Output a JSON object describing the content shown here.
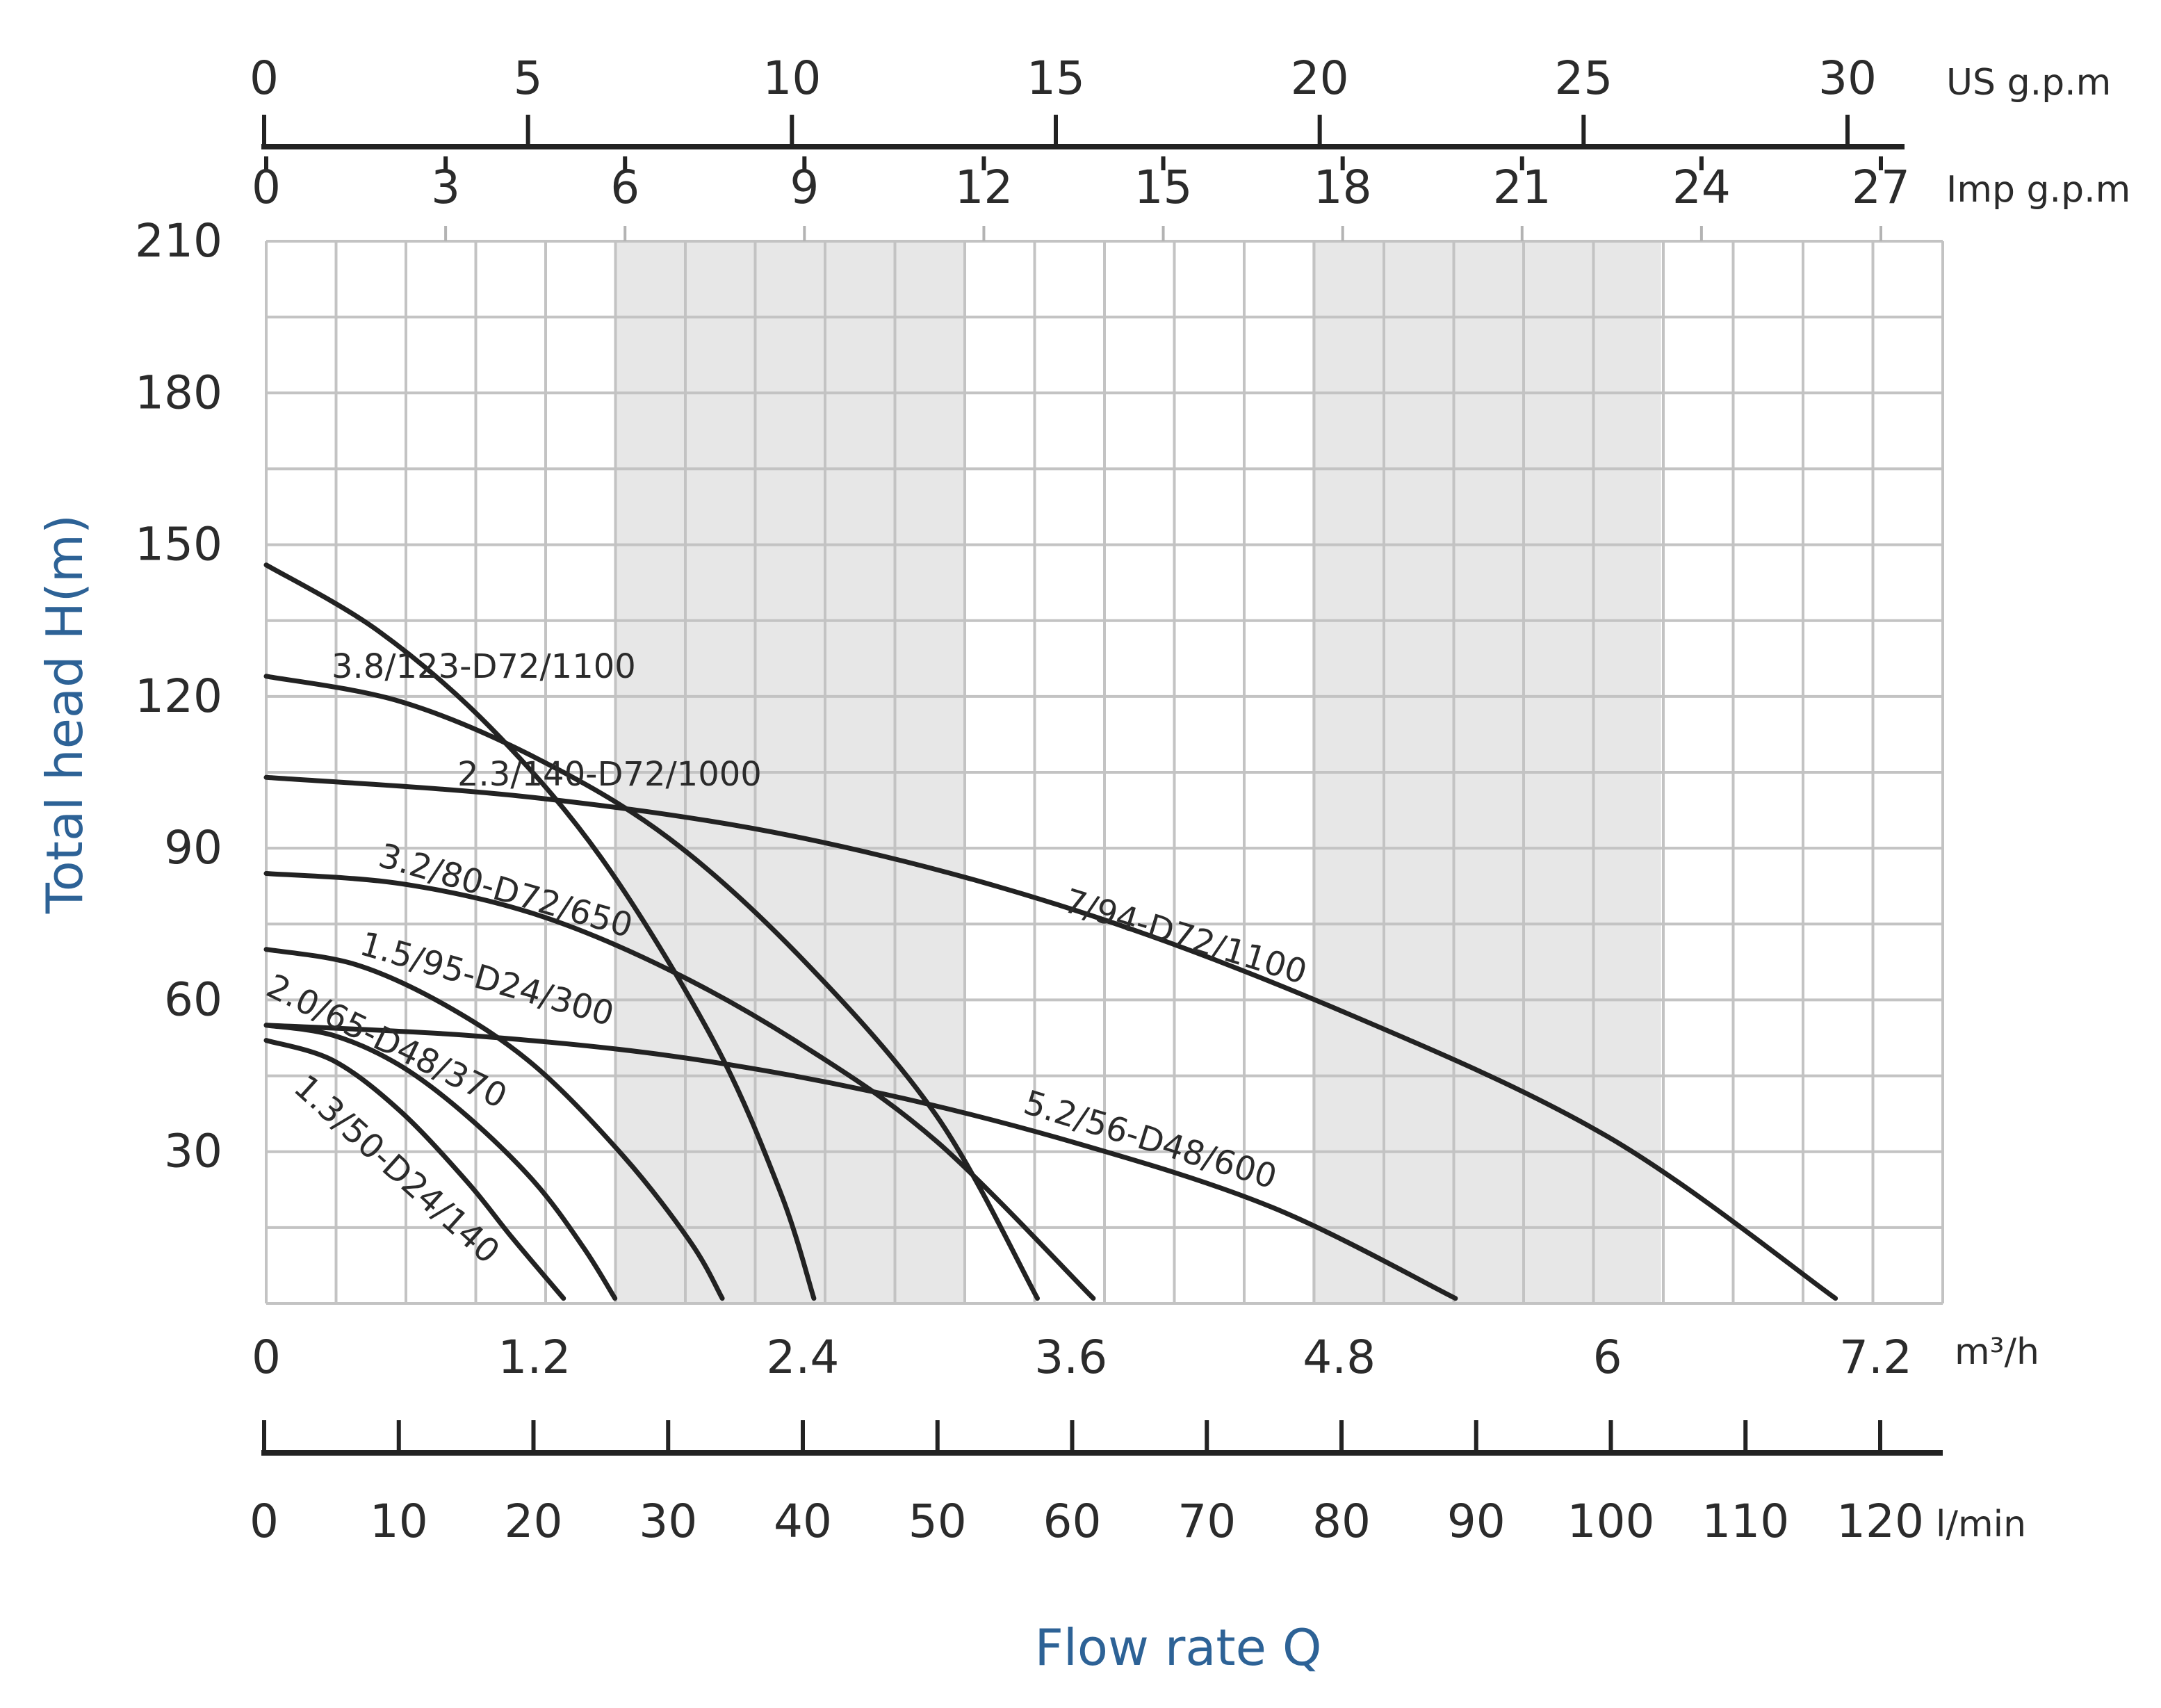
{
  "chart_data": {
    "type": "line",
    "xlabel": "Flow rate Q",
    "ylabel": "Total head H(m)",
    "x_unit": "m³/h",
    "xlim": [
      0,
      7.5
    ],
    "ylim": [
      0,
      210
    ],
    "x_ticks": [
      0,
      1.2,
      2.4,
      3.6,
      4.8,
      6,
      7.2
    ],
    "x_tick_labels": [
      "0",
      "1.2",
      "2.4",
      "3.6",
      "4.8",
      "6",
      "7.2"
    ],
    "y_ticks": [
      30,
      60,
      90,
      120,
      150,
      180,
      210
    ],
    "y_tick_labels": [
      "30",
      "60",
      "90",
      "120",
      "150",
      "180",
      "210"
    ],
    "grid": true,
    "shaded_x_ranges": [
      [
        1.56,
        3.12
      ],
      [
        4.68,
        6.24
      ]
    ],
    "secondary_axes": [
      {
        "unit": "US g.p.m",
        "position": "top",
        "ticks": [
          0,
          5,
          10,
          15,
          20,
          25,
          30
        ],
        "labels": [
          "0",
          "5",
          "10",
          "15",
          "20",
          "25",
          "30"
        ]
      },
      {
        "unit": "Imp g.p.m",
        "position": "top",
        "ticks": [
          0,
          3,
          6,
          9,
          12,
          15,
          18,
          21,
          24,
          27
        ],
        "labels": [
          "0",
          "3",
          "6",
          "9",
          "12",
          "15",
          "18",
          "21",
          "24",
          "27"
        ]
      },
      {
        "unit": "l/min",
        "position": "bottom",
        "ticks": [
          0,
          10,
          20,
          30,
          40,
          50,
          60,
          70,
          80,
          90,
          100,
          110,
          120
        ],
        "labels": [
          "0",
          "10",
          "20",
          "30",
          "40",
          "50",
          "60",
          "70",
          "80",
          "90",
          "100",
          "110",
          "120"
        ]
      }
    ],
    "series": [
      {
        "name": "1.3/50-D24/140",
        "x": [
          0,
          0.3,
          0.6,
          0.9,
          1.1,
          1.33
        ],
        "y": [
          52,
          48,
          38,
          24,
          13,
          1
        ]
      },
      {
        "name": "2.0/65-D48/370",
        "x": [
          0,
          0.3,
          0.6,
          0.9,
          1.2,
          1.42,
          1.56
        ],
        "y": [
          55,
          53,
          47,
          37,
          24,
          11,
          1
        ]
      },
      {
        "name": "1.5/95-D24/300",
        "x": [
          0,
          0.4,
          0.8,
          1.2,
          1.6,
          1.9,
          2.04
        ],
        "y": [
          70,
          67,
          59,
          47,
          29,
          12,
          1
        ]
      },
      {
        "name": "2.3/140-D72/1000",
        "x": [
          0,
          0.5,
          1.0,
          1.5,
          2.0,
          2.3,
          2.45
        ],
        "y": [
          146,
          133,
          114,
          88,
          52,
          22,
          1
        ]
      },
      {
        "name": "3.8/123-D72/1100",
        "x": [
          0,
          0.6,
          1.2,
          1.8,
          2.4,
          3.0,
          3.45
        ],
        "y": [
          124,
          119,
          108,
          92,
          68,
          37,
          1
        ]
      },
      {
        "name": "3.2/80-D72/650",
        "x": [
          0,
          0.6,
          1.2,
          1.8,
          2.4,
          3.0,
          3.7
        ],
        "y": [
          85,
          83,
          77,
          66,
          51,
          32,
          1
        ]
      },
      {
        "name": "5.2/56-D48/600",
        "x": [
          0,
          0.9,
          1.8,
          2.7,
          3.6,
          4.5,
          5.32
        ],
        "y": [
          55,
          53,
          49,
          42,
          32,
          19,
          1
        ]
      },
      {
        "name": "7/94-D72/1100",
        "x": [
          0,
          1.2,
          2.4,
          3.6,
          4.8,
          6.0,
          7.02
        ],
        "y": [
          104,
          100,
          92,
          78,
          58,
          33,
          1
        ]
      }
    ]
  }
}
